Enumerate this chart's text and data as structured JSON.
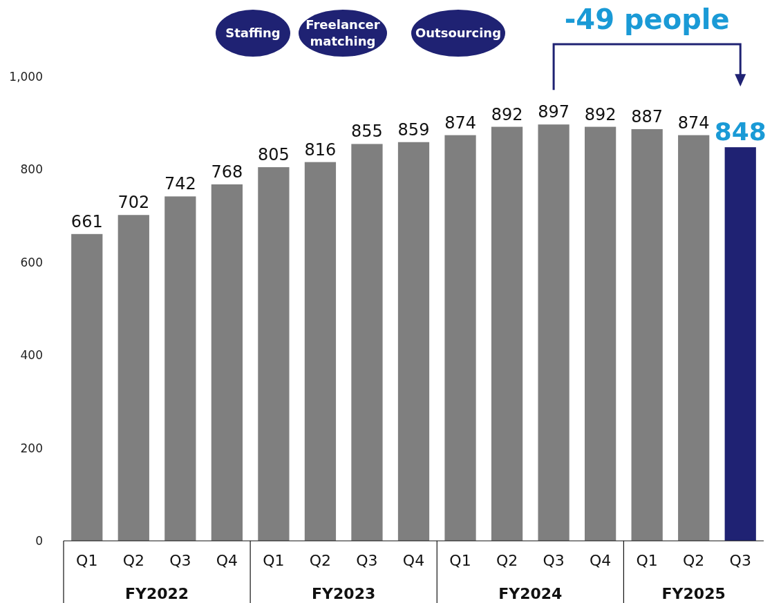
{
  "chart_data": {
    "type": "bar",
    "categories": [
      "Q1",
      "Q2",
      "Q3",
      "Q4",
      "Q1",
      "Q2",
      "Q3",
      "Q4",
      "Q1",
      "Q2",
      "Q3",
      "Q4",
      "Q1",
      "Q2",
      "Q3"
    ],
    "values": [
      661,
      702,
      742,
      768,
      805,
      816,
      855,
      859,
      874,
      892,
      897,
      892,
      887,
      874,
      848
    ],
    "colors": [
      "#7f7f7f",
      "#7f7f7f",
      "#7f7f7f",
      "#7f7f7f",
      "#7f7f7f",
      "#7f7f7f",
      "#7f7f7f",
      "#7f7f7f",
      "#7f7f7f",
      "#7f7f7f",
      "#7f7f7f",
      "#7f7f7f",
      "#7f7f7f",
      "#7f7f7f",
      "#1f2273"
    ],
    "ylim": [
      0,
      1000
    ],
    "yticks": [
      0,
      200,
      400,
      600,
      800,
      {
        "value": 1000,
        "label": "1,000"
      }
    ],
    "data_labels": true,
    "annotations": [
      "Staffing",
      "Freelancer matching",
      "Outsourcing",
      "FY2022",
      "FY2023",
      "FY2024",
      "FY2025",
      "-49 people"
    ]
  }
}
